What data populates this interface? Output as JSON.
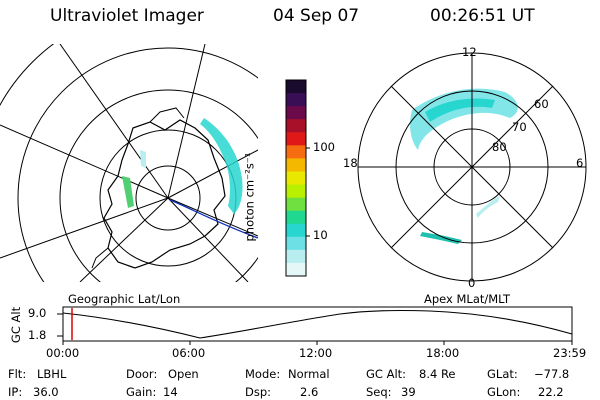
{
  "header": {
    "instrument": "Ultraviolet Imager",
    "date": "04 Sep 07",
    "time": "00:26:51 UT"
  },
  "colorbar": {
    "unit_label": "photon cm⁻²s⁻¹",
    "ticks": [
      "100",
      "10"
    ],
    "scale": "log",
    "colors": [
      "#1a0a2e",
      "#3a0e55",
      "#6a0a4a",
      "#a8102a",
      "#e01818",
      "#f56d10",
      "#f5b800",
      "#e8e800",
      "#b8f000",
      "#70e040",
      "#20d890",
      "#28d6d0",
      "#6ce0e4",
      "#b8eef0",
      "#e6f7f8"
    ]
  },
  "left_map": {
    "caption": "Geographic Lat/Lon"
  },
  "right_map": {
    "caption": "Apex MLat/MLT",
    "mlt_labels": {
      "top": "12",
      "bottom": "0",
      "left": "18",
      "right": "6"
    },
    "mlat_labels": [
      "60",
      "70",
      "80"
    ]
  },
  "altitude_plot": {
    "axis_label": "GC Alt",
    "y_ticks": [
      "9.0",
      "1.8"
    ],
    "x_ticks": [
      "00:00",
      "06:00",
      "12:00",
      "18:00",
      "23:59"
    ],
    "current_marker_time": "00:26:51",
    "marker_color": "#e00000"
  },
  "status": {
    "flt_label": "Flt:",
    "flt_value": "LBHL",
    "ip_label": "IP:",
    "ip_value": "36.0",
    "door_label": "Door:",
    "door_value": "Open",
    "gain_label": "Gain:",
    "gain_value": "14",
    "mode_label": "Mode:",
    "mode_value": "Normal",
    "dsp_label": "Dsp:",
    "dsp_value": "2.6",
    "gcalt_label": "GC Alt:",
    "gcalt_value": "8.4 Re",
    "seq_label": "Seq:",
    "seq_value": "39",
    "glat_label": "GLat:",
    "glat_value": "−77.8",
    "glon_label": "GLon:",
    "glon_value": "22.2"
  }
}
